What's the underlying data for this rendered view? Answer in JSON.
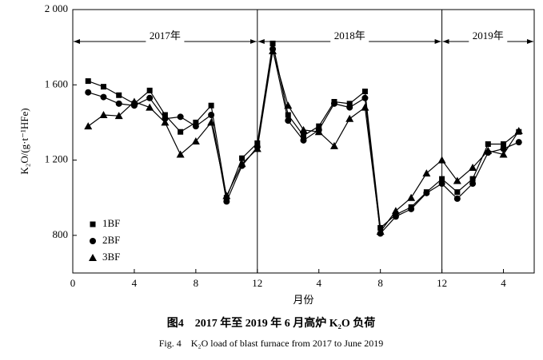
{
  "chart_data": {
    "type": "line",
    "xlabel": "月份",
    "ylabel": "K₂O/(g·t⁻¹HFe)",
    "caption_cn": "图4　2017 年至 2019 年 6 月高炉 K₂O 负荷",
    "caption_en": "Fig. 4　K₂O load of blast furnace from 2017 to June 2019",
    "periods": [
      {
        "label": "2017年",
        "start": 0,
        "end": 12
      },
      {
        "label": "2018年",
        "start": 12,
        "end": 24
      },
      {
        "label": "2019年",
        "start": 24,
        "end": 30
      }
    ],
    "x": [
      1,
      2,
      3,
      4,
      5,
      6,
      7,
      8,
      9,
      10,
      11,
      12,
      13,
      14,
      15,
      16,
      17,
      18,
      19,
      20,
      21,
      22,
      23,
      24,
      25,
      26,
      27,
      28,
      29
    ],
    "series": [
      {
        "name": "1BF",
        "color": "#000000",
        "marker": "square",
        "values": [
          1620,
          1590,
          1545,
          1500,
          1570,
          1440,
          1350,
          1400,
          1490,
          1000,
          1210,
          1290,
          1820,
          1440,
          1330,
          1380,
          1510,
          1500,
          1565,
          840,
          910,
          950,
          1030,
          1100,
          1030,
          1100,
          1285,
          1285,
          1350
        ]
      },
      {
        "name": "2BF",
        "color": "#000000",
        "marker": "circle",
        "values": [
          1560,
          1535,
          1500,
          1490,
          1530,
          1420,
          1430,
          1380,
          1440,
          980,
          1170,
          1270,
          1790,
          1410,
          1305,
          1360,
          1500,
          1480,
          1530,
          810,
          900,
          940,
          1025,
          1075,
          995,
          1075,
          1240,
          1260,
          1295
        ]
      },
      {
        "name": "3BF",
        "color": "#000000",
        "marker": "triangle",
        "values": [
          1380,
          1440,
          1435,
          1510,
          1480,
          1400,
          1230,
          1300,
          1400,
          1010,
          1180,
          1260,
          1780,
          1490,
          1360,
          1350,
          1275,
          1420,
          1480,
          820,
          930,
          1000,
          1130,
          1200,
          1090,
          1160,
          1250,
          1230,
          1355
        ]
      }
    ],
    "xlim": [
      0,
      30
    ],
    "xticks": [
      0,
      4,
      8,
      12,
      {
        "value": 16,
        "label": "4"
      },
      {
        "value": 20,
        "label": "8"
      },
      {
        "value": 24,
        "label": "12"
      },
      {
        "value": 28,
        "label": "4"
      }
    ],
    "ylim": [
      600,
      2000
    ],
    "yticks": [
      {
        "value": 800,
        "label": "800"
      },
      {
        "value": 1200,
        "label": "1 200"
      },
      {
        "value": 1600,
        "label": "1 600"
      },
      {
        "value": 2000,
        "label": "2 000"
      }
    ],
    "legend": "lower left",
    "grid": false
  }
}
